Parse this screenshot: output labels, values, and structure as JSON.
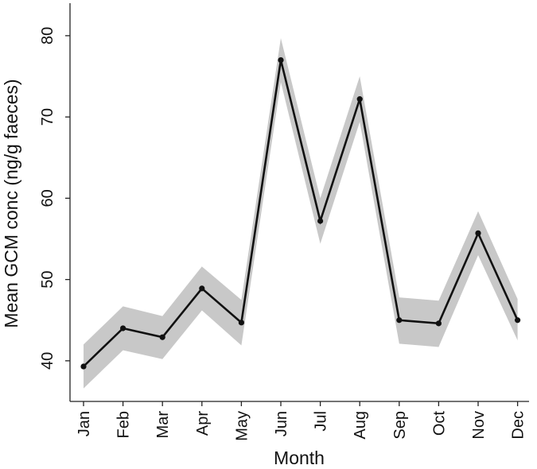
{
  "chart_data": {
    "type": "line",
    "title": "",
    "xlabel": "Month",
    "ylabel": "Mean GCM conc (ng/g faeces)",
    "categories": [
      "Jan",
      "Feb",
      "Mar",
      "Apr",
      "May",
      "Jun",
      "Jul",
      "Aug",
      "Sep",
      "Oct",
      "Nov",
      "Dec"
    ],
    "series": [
      {
        "values": [
          39.3,
          44.0,
          42.9,
          48.9,
          44.7,
          77.0,
          57.2,
          72.2,
          45.0,
          44.6,
          55.7,
          45.0
        ],
        "lower": [
          36.6,
          41.3,
          40.2,
          46.2,
          41.9,
          74.3,
          54.4,
          69.4,
          42.1,
          41.7,
          53.0,
          42.5
        ],
        "upper": [
          42.0,
          46.7,
          45.5,
          51.6,
          47.5,
          79.7,
          60.0,
          75.0,
          47.8,
          47.4,
          58.4,
          47.6
        ]
      }
    ],
    "ylim": [
      35,
      84
    ],
    "yticks": [
      40,
      50,
      60,
      70,
      80
    ],
    "grid": false,
    "colors": {
      "line": "#111111",
      "band": "#c8c8c8",
      "point": "#111111",
      "axis": "#222222"
    }
  }
}
